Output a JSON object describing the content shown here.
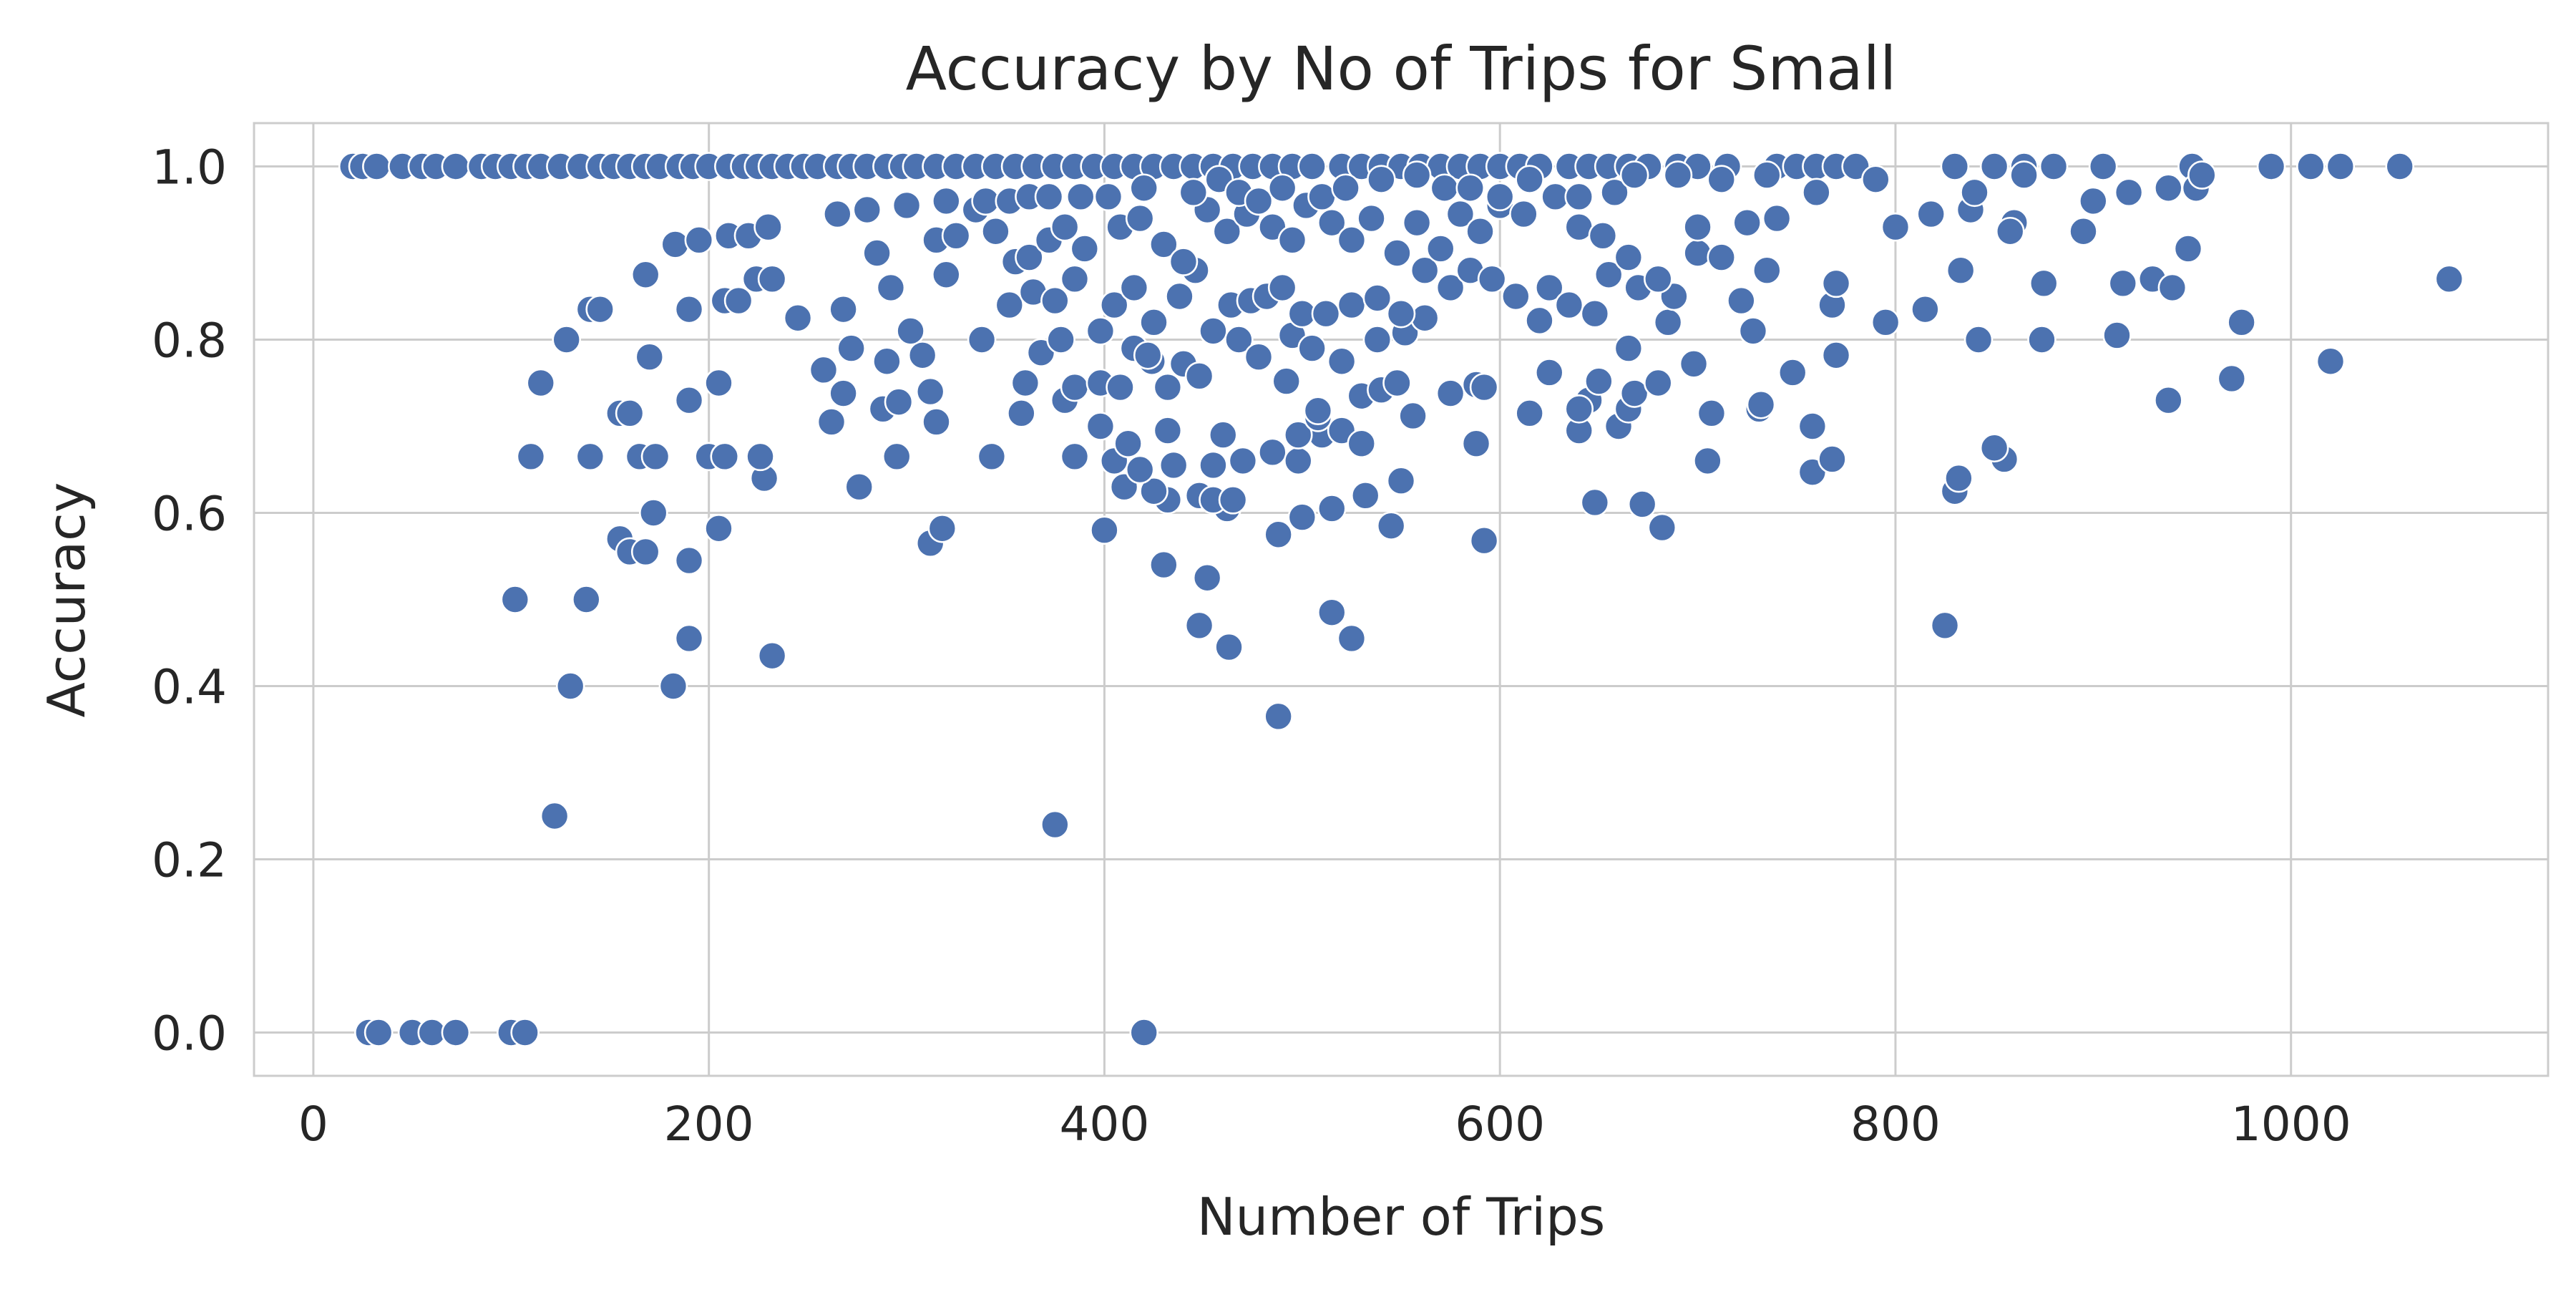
{
  "chart_data": {
    "type": "scatter",
    "title": "Accuracy by No of Trips for Small",
    "xlabel": "Number of Trips",
    "ylabel": "Accuracy",
    "xlim": [
      -30,
      1130
    ],
    "ylim": [
      -0.05,
      1.05
    ],
    "x_ticks": [
      0,
      200,
      400,
      600,
      800,
      1000
    ],
    "x_tick_labels": [
      "0",
      "200",
      "400",
      "600",
      "800",
      "1000"
    ],
    "y_ticks": [
      0.0,
      0.2,
      0.4,
      0.6,
      0.8,
      1.0
    ],
    "y_tick_labels": [
      "0.0",
      "0.2",
      "0.4",
      "0.6",
      "0.8",
      "1.0"
    ],
    "grid": true,
    "style": "whitegrid",
    "colors": {
      "point": "#4c72b0",
      "grid": "#cccccc",
      "background": "#ffffff"
    },
    "points": [
      [
        20,
        1.0
      ],
      [
        25,
        1.0
      ],
      [
        32,
        1.0
      ],
      [
        45,
        1.0
      ],
      [
        55,
        1.0
      ],
      [
        62,
        1.0
      ],
      [
        72,
        1.0
      ],
      [
        85,
        1.0
      ],
      [
        92,
        1.0
      ],
      [
        100,
        1.0
      ],
      [
        108,
        1.0
      ],
      [
        115,
        1.0
      ],
      [
        125,
        1.0
      ],
      [
        135,
        1.0
      ],
      [
        145,
        1.0
      ],
      [
        152,
        1.0
      ],
      [
        160,
        1.0
      ],
      [
        168,
        1.0
      ],
      [
        175,
        1.0
      ],
      [
        185,
        1.0
      ],
      [
        192,
        1.0
      ],
      [
        200,
        1.0
      ],
      [
        210,
        1.0
      ],
      [
        218,
        1.0
      ],
      [
        225,
        1.0
      ],
      [
        232,
        1.0
      ],
      [
        240,
        1.0
      ],
      [
        248,
        1.0
      ],
      [
        255,
        1.0
      ],
      [
        265,
        1.0
      ],
      [
        272,
        1.0
      ],
      [
        280,
        1.0
      ],
      [
        290,
        1.0
      ],
      [
        298,
        1.0
      ],
      [
        305,
        1.0
      ],
      [
        315,
        1.0
      ],
      [
        325,
        1.0
      ],
      [
        335,
        1.0
      ],
      [
        345,
        1.0
      ],
      [
        355,
        1.0
      ],
      [
        365,
        1.0
      ],
      [
        375,
        1.0
      ],
      [
        385,
        1.0
      ],
      [
        395,
        1.0
      ],
      [
        405,
        1.0
      ],
      [
        415,
        1.0
      ],
      [
        425,
        1.0
      ],
      [
        435,
        1.0
      ],
      [
        445,
        1.0
      ],
      [
        455,
        1.0
      ],
      [
        465,
        1.0
      ],
      [
        475,
        1.0
      ],
      [
        485,
        1.0
      ],
      [
        495,
        1.0
      ],
      [
        505,
        1.0
      ],
      [
        520,
        1.0
      ],
      [
        530,
        1.0
      ],
      [
        540,
        1.0
      ],
      [
        550,
        1.0
      ],
      [
        560,
        1.0
      ],
      [
        570,
        1.0
      ],
      [
        580,
        1.0
      ],
      [
        590,
        1.0
      ],
      [
        600,
        1.0
      ],
      [
        610,
        1.0
      ],
      [
        620,
        1.0
      ],
      [
        635,
        1.0
      ],
      [
        645,
        1.0
      ],
      [
        655,
        1.0
      ],
      [
        665,
        1.0
      ],
      [
        675,
        1.0
      ],
      [
        690,
        1.0
      ],
      [
        700,
        1.0
      ],
      [
        715,
        1.0
      ],
      [
        740,
        1.0
      ],
      [
        750,
        1.0
      ],
      [
        760,
        1.0
      ],
      [
        770,
        1.0
      ],
      [
        780,
        1.0
      ],
      [
        830,
        1.0
      ],
      [
        850,
        1.0
      ],
      [
        865,
        1.0
      ],
      [
        880,
        1.0
      ],
      [
        905,
        1.0
      ],
      [
        950,
        1.0
      ],
      [
        990,
        1.0
      ],
      [
        1010,
        1.0
      ],
      [
        1025,
        1.0
      ],
      [
        1055,
        1.0
      ],
      [
        28,
        0.0
      ],
      [
        33,
        0.0
      ],
      [
        50,
        0.0
      ],
      [
        60,
        0.0
      ],
      [
        72,
        0.0
      ],
      [
        100,
        0.0
      ],
      [
        107,
        0.0
      ],
      [
        420,
        0.0
      ],
      [
        375,
        0.24
      ],
      [
        122,
        0.25
      ],
      [
        488,
        0.365
      ],
      [
        130,
        0.4
      ],
      [
        182,
        0.4
      ],
      [
        232,
        0.435
      ],
      [
        463,
        0.445
      ],
      [
        525,
        0.455
      ],
      [
        190,
        0.455
      ],
      [
        448,
        0.47
      ],
      [
        515,
        0.485
      ],
      [
        825,
        0.47
      ],
      [
        102,
        0.5
      ],
      [
        138,
        0.5
      ],
      [
        452,
        0.525
      ],
      [
        430,
        0.54
      ],
      [
        190,
        0.545
      ],
      [
        312,
        0.565
      ],
      [
        592,
        0.568
      ],
      [
        155,
        0.57
      ],
      [
        318,
        0.582
      ],
      [
        400,
        0.58
      ],
      [
        205,
        0.582
      ],
      [
        488,
        0.575
      ],
      [
        545,
        0.585
      ],
      [
        682,
        0.583
      ],
      [
        172,
        0.6
      ],
      [
        500,
        0.595
      ],
      [
        515,
        0.605
      ],
      [
        160,
        0.555
      ],
      [
        168,
        0.555
      ],
      [
        432,
        0.615
      ],
      [
        462,
        0.605
      ],
      [
        448,
        0.62
      ],
      [
        455,
        0.615
      ],
      [
        465,
        0.615
      ],
      [
        425,
        0.625
      ],
      [
        648,
        0.612
      ],
      [
        672,
        0.61
      ],
      [
        830,
        0.625
      ],
      [
        832,
        0.64
      ],
      [
        410,
        0.63
      ],
      [
        276,
        0.63
      ],
      [
        228,
        0.64
      ],
      [
        532,
        0.62
      ],
      [
        550,
        0.637
      ],
      [
        758,
        0.647
      ],
      [
        768,
        0.662
      ],
      [
        855,
        0.662
      ],
      [
        850,
        0.675
      ],
      [
        705,
        0.66
      ],
      [
        110,
        0.665
      ],
      [
        140,
        0.665
      ],
      [
        165,
        0.665
      ],
      [
        173,
        0.665
      ],
      [
        200,
        0.665
      ],
      [
        208,
        0.665
      ],
      [
        226,
        0.665
      ],
      [
        295,
        0.665
      ],
      [
        343,
        0.665
      ],
      [
        385,
        0.665
      ],
      [
        405,
        0.66
      ],
      [
        418,
        0.65
      ],
      [
        435,
        0.655
      ],
      [
        455,
        0.655
      ],
      [
        470,
        0.66
      ],
      [
        485,
        0.67
      ],
      [
        498,
        0.66
      ],
      [
        510,
        0.69
      ],
      [
        520,
        0.695
      ],
      [
        530,
        0.68
      ],
      [
        588,
        0.68
      ],
      [
        615,
        0.715
      ],
      [
        640,
        0.695
      ],
      [
        660,
        0.7
      ],
      [
        665,
        0.72
      ],
      [
        707,
        0.715
      ],
      [
        731,
        0.72
      ],
      [
        758,
        0.7
      ],
      [
        645,
        0.73
      ],
      [
        498,
        0.69
      ],
      [
        508,
        0.71
      ],
      [
        460,
        0.69
      ],
      [
        432,
        0.695
      ],
      [
        358,
        0.715
      ],
      [
        398,
        0.7
      ],
      [
        268,
        0.738
      ],
      [
        288,
        0.72
      ],
      [
        296,
        0.728
      ],
      [
        312,
        0.74
      ],
      [
        315,
        0.705
      ],
      [
        380,
        0.73
      ],
      [
        385,
        0.745
      ],
      [
        398,
        0.75
      ],
      [
        408,
        0.745
      ],
      [
        412,
        0.68
      ],
      [
        424,
        0.775
      ],
      [
        432,
        0.745
      ],
      [
        440,
        0.772
      ],
      [
        448,
        0.758
      ],
      [
        492,
        0.752
      ],
      [
        508,
        0.718
      ],
      [
        530,
        0.735
      ],
      [
        540,
        0.742
      ],
      [
        548,
        0.75
      ],
      [
        556,
        0.712
      ],
      [
        575,
        0.738
      ],
      [
        588,
        0.748
      ],
      [
        592,
        0.745
      ],
      [
        625,
        0.762
      ],
      [
        640,
        0.72
      ],
      [
        650,
        0.752
      ],
      [
        668,
        0.738
      ],
      [
        680,
        0.75
      ],
      [
        698,
        0.772
      ],
      [
        732,
        0.725
      ],
      [
        748,
        0.762
      ],
      [
        770,
        0.782
      ],
      [
        155,
        0.715
      ],
      [
        160,
        0.715
      ],
      [
        190,
        0.73
      ],
      [
        205,
        0.75
      ],
      [
        115,
        0.75
      ],
      [
        128,
        0.8
      ],
      [
        170,
        0.78
      ],
      [
        258,
        0.765
      ],
      [
        262,
        0.705
      ],
      [
        290,
        0.775
      ],
      [
        308,
        0.782
      ],
      [
        272,
        0.79
      ],
      [
        360,
        0.75
      ],
      [
        368,
        0.785
      ],
      [
        378,
        0.8
      ],
      [
        398,
        0.81
      ],
      [
        415,
        0.79
      ],
      [
        422,
        0.782
      ],
      [
        455,
        0.81
      ],
      [
        468,
        0.8
      ],
      [
        478,
        0.78
      ],
      [
        495,
        0.805
      ],
      [
        505,
        0.79
      ],
      [
        520,
        0.775
      ],
      [
        538,
        0.8
      ],
      [
        552,
        0.808
      ],
      [
        562,
        0.825
      ],
      [
        620,
        0.822
      ],
      [
        648,
        0.83
      ],
      [
        665,
        0.79
      ],
      [
        685,
        0.82
      ],
      [
        728,
        0.81
      ],
      [
        768,
        0.84
      ],
      [
        795,
        0.82
      ],
      [
        815,
        0.835
      ],
      [
        842,
        0.8
      ],
      [
        874,
        0.8
      ],
      [
        912,
        0.805
      ],
      [
        938,
        0.73
      ],
      [
        970,
        0.755
      ],
      [
        975,
        0.82
      ],
      [
        1020,
        0.775
      ],
      [
        1080,
        0.87
      ],
      [
        140,
        0.835
      ],
      [
        145,
        0.835
      ],
      [
        168,
        0.875
      ],
      [
        190,
        0.835
      ],
      [
        208,
        0.845
      ],
      [
        215,
        0.845
      ],
      [
        224,
        0.87
      ],
      [
        232,
        0.87
      ],
      [
        245,
        0.825
      ],
      [
        268,
        0.835
      ],
      [
        285,
        0.9
      ],
      [
        292,
        0.86
      ],
      [
        302,
        0.81
      ],
      [
        320,
        0.875
      ],
      [
        338,
        0.8
      ],
      [
        352,
        0.84
      ],
      [
        364,
        0.855
      ],
      [
        375,
        0.845
      ],
      [
        385,
        0.87
      ],
      [
        405,
        0.84
      ],
      [
        415,
        0.86
      ],
      [
        425,
        0.82
      ],
      [
        438,
        0.85
      ],
      [
        446,
        0.88
      ],
      [
        464,
        0.84
      ],
      [
        474,
        0.845
      ],
      [
        482,
        0.85
      ],
      [
        490,
        0.86
      ],
      [
        500,
        0.83
      ],
      [
        512,
        0.83
      ],
      [
        525,
        0.84
      ],
      [
        538,
        0.848
      ],
      [
        550,
        0.83
      ],
      [
        562,
        0.88
      ],
      [
        575,
        0.86
      ],
      [
        585,
        0.88
      ],
      [
        596,
        0.87
      ],
      [
        608,
        0.85
      ],
      [
        625,
        0.86
      ],
      [
        635,
        0.84
      ],
      [
        655,
        0.875
      ],
      [
        670,
        0.86
      ],
      [
        688,
        0.85
      ],
      [
        700,
        0.9
      ],
      [
        722,
        0.845
      ],
      [
        735,
        0.88
      ],
      [
        770,
        0.865
      ],
      [
        833,
        0.88
      ],
      [
        860,
        0.935
      ],
      [
        875,
        0.865
      ],
      [
        895,
        0.925
      ],
      [
        915,
        0.865
      ],
      [
        930,
        0.87
      ],
      [
        940,
        0.86
      ],
      [
        948,
        0.905
      ],
      [
        183,
        0.91
      ],
      [
        195,
        0.915
      ],
      [
        210,
        0.92
      ],
      [
        220,
        0.92
      ],
      [
        230,
        0.93
      ],
      [
        265,
        0.945
      ],
      [
        280,
        0.95
      ],
      [
        300,
        0.955
      ],
      [
        315,
        0.915
      ],
      [
        325,
        0.92
      ],
      [
        335,
        0.95
      ],
      [
        345,
        0.925
      ],
      [
        355,
        0.89
      ],
      [
        362,
        0.895
      ],
      [
        372,
        0.915
      ],
      [
        380,
        0.93
      ],
      [
        390,
        0.905
      ],
      [
        408,
        0.93
      ],
      [
        418,
        0.94
      ],
      [
        430,
        0.91
      ],
      [
        440,
        0.89
      ],
      [
        452,
        0.95
      ],
      [
        462,
        0.925
      ],
      [
        472,
        0.945
      ],
      [
        485,
        0.93
      ],
      [
        495,
        0.915
      ],
      [
        502,
        0.955
      ],
      [
        515,
        0.935
      ],
      [
        525,
        0.915
      ],
      [
        535,
        0.94
      ],
      [
        548,
        0.9
      ],
      [
        558,
        0.935
      ],
      [
        570,
        0.905
      ],
      [
        580,
        0.945
      ],
      [
        590,
        0.925
      ],
      [
        600,
        0.955
      ],
      [
        612,
        0.945
      ],
      [
        628,
        0.965
      ],
      [
        640,
        0.93
      ],
      [
        652,
        0.92
      ],
      [
        665,
        0.895
      ],
      [
        680,
        0.87
      ],
      [
        700,
        0.93
      ],
      [
        712,
        0.895
      ],
      [
        725,
        0.935
      ],
      [
        740,
        0.94
      ],
      [
        800,
        0.93
      ],
      [
        818,
        0.945
      ],
      [
        838,
        0.95
      ],
      [
        858,
        0.925
      ],
      [
        900,
        0.96
      ],
      [
        918,
        0.97
      ],
      [
        938,
        0.975
      ],
      [
        952,
        0.975
      ],
      [
        955,
        0.99
      ],
      [
        320,
        0.96
      ],
      [
        340,
        0.96
      ],
      [
        352,
        0.96
      ],
      [
        362,
        0.965
      ],
      [
        372,
        0.965
      ],
      [
        388,
        0.965
      ],
      [
        402,
        0.965
      ],
      [
        420,
        0.975
      ],
      [
        445,
        0.97
      ],
      [
        458,
        0.985
      ],
      [
        468,
        0.97
      ],
      [
        478,
        0.96
      ],
      [
        490,
        0.975
      ],
      [
        510,
        0.965
      ],
      [
        522,
        0.975
      ],
      [
        540,
        0.985
      ],
      [
        558,
        0.99
      ],
      [
        572,
        0.975
      ],
      [
        585,
        0.975
      ],
      [
        600,
        0.965
      ],
      [
        615,
        0.985
      ],
      [
        640,
        0.965
      ],
      [
        658,
        0.97
      ],
      [
        668,
        0.99
      ],
      [
        690,
        0.99
      ],
      [
        712,
        0.985
      ],
      [
        735,
        0.99
      ],
      [
        760,
        0.97
      ],
      [
        790,
        0.985
      ],
      [
        840,
        0.97
      ],
      [
        865,
        0.99
      ]
    ]
  }
}
